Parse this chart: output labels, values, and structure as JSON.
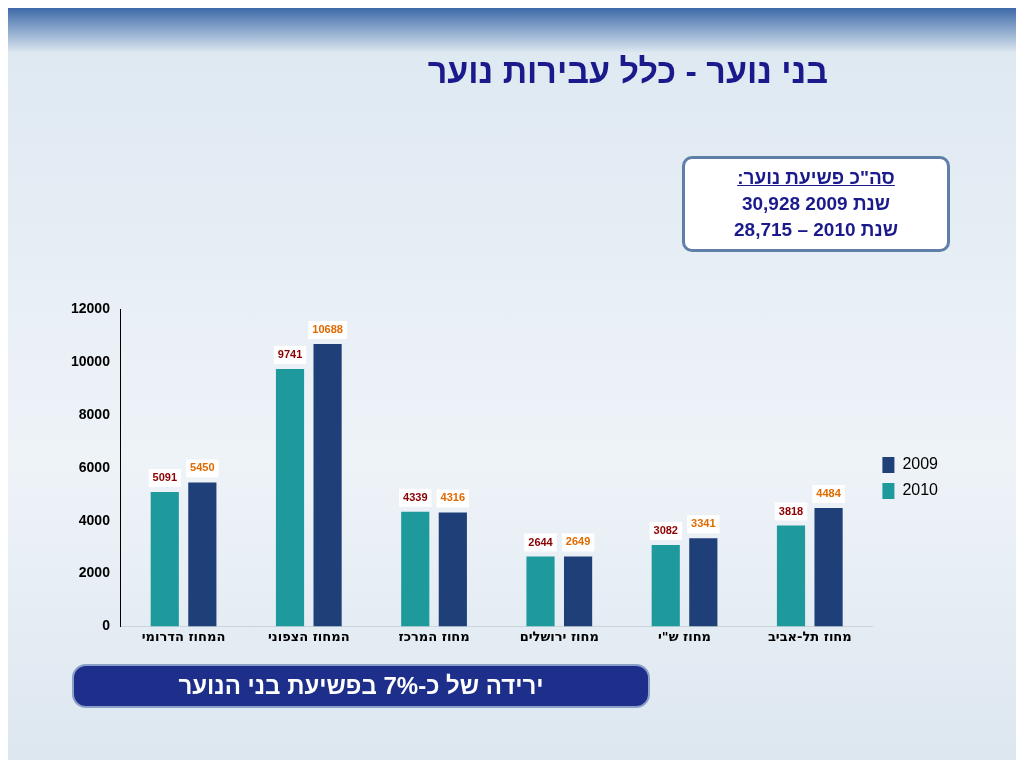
{
  "chart_data": {
    "type": "bar",
    "title": "בני נוער - כלל עבירות נוער",
    "categories": [
      "המחוז הדרומי",
      "המחוז הצפוני",
      "מחוז המרכז",
      "מחוז ירושלים",
      "מחוז ש\"י",
      "מחוז תל-אביב"
    ],
    "series": [
      {
        "name": "2010",
        "color": "#1f9a9c",
        "values": [
          5091,
          9741,
          4339,
          2644,
          3082,
          3818
        ]
      },
      {
        "name": "2009",
        "color": "#1e3f78",
        "values": [
          5450,
          10688,
          4316,
          2649,
          3341,
          4484
        ]
      }
    ],
    "ylim": [
      0,
      12000
    ],
    "yticks": [
      0,
      2000,
      4000,
      6000,
      8000,
      10000,
      12000
    ],
    "grid": false,
    "legend": "right",
    "data_labels": true,
    "annotations": [
      "סה\"כ פשיעת נוער:",
      "שנת 2009 30,928",
      "שנת 2010 – 28,715",
      "ירידה של כ-7% בפשיעת בני הנוער"
    ]
  }
}
